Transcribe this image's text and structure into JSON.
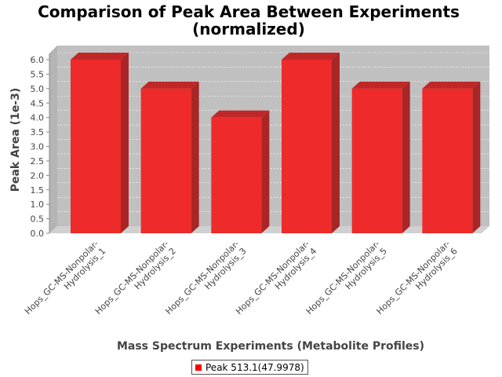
{
  "chart_data": {
    "type": "bar",
    "title": "Comparison of Peak Area Between Experiments",
    "subtitle": "(normalized)",
    "xlabel": "Mass Spectrum Experiments (Metabolite Profiles)",
    "ylabel": "Peak Area (1e-3)",
    "ylim": [
      0,
      6.0
    ],
    "yticks": [
      "0.0",
      "0.5",
      "1.0",
      "1.5",
      "2.0",
      "2.5",
      "3.0",
      "3.5",
      "4.0",
      "4.5",
      "5.0",
      "5.5",
      "6.0"
    ],
    "grid": true,
    "legend_placement": "bottom",
    "categories": [
      [
        "Hops_GC-MS-Nonpolar-",
        "Hydrolysis_1"
      ],
      [
        "Hops_GC-MS-Nonpolar-",
        "Hydrolysis_2"
      ],
      [
        "Hops_GC-MS-Nonpolar-",
        "Hydrolysis_3"
      ],
      [
        "Hops_GC-MS-Nonpolar-",
        "Hydrolysis_4"
      ],
      [
        "Hops_GC-MS-Nonpolar-",
        "Hydrolysis_5"
      ],
      [
        "Hops_GC-MS-Nonpolar-",
        "Hydrolysis_6"
      ]
    ],
    "series": [
      {
        "name": "Peak 513.1(47.9978)",
        "values": [
          6.0,
          5.0,
          4.0,
          6.0,
          5.0,
          5.0
        ]
      }
    ],
    "colors": {
      "bar_front": "#ee2a2a",
      "bar_top": "#c02828",
      "bar_side": "#a82626",
      "plot_bg": "#c0c0c0",
      "plot_wall": "#d0d0d0",
      "legend_swatch": "#ff0000"
    }
  }
}
